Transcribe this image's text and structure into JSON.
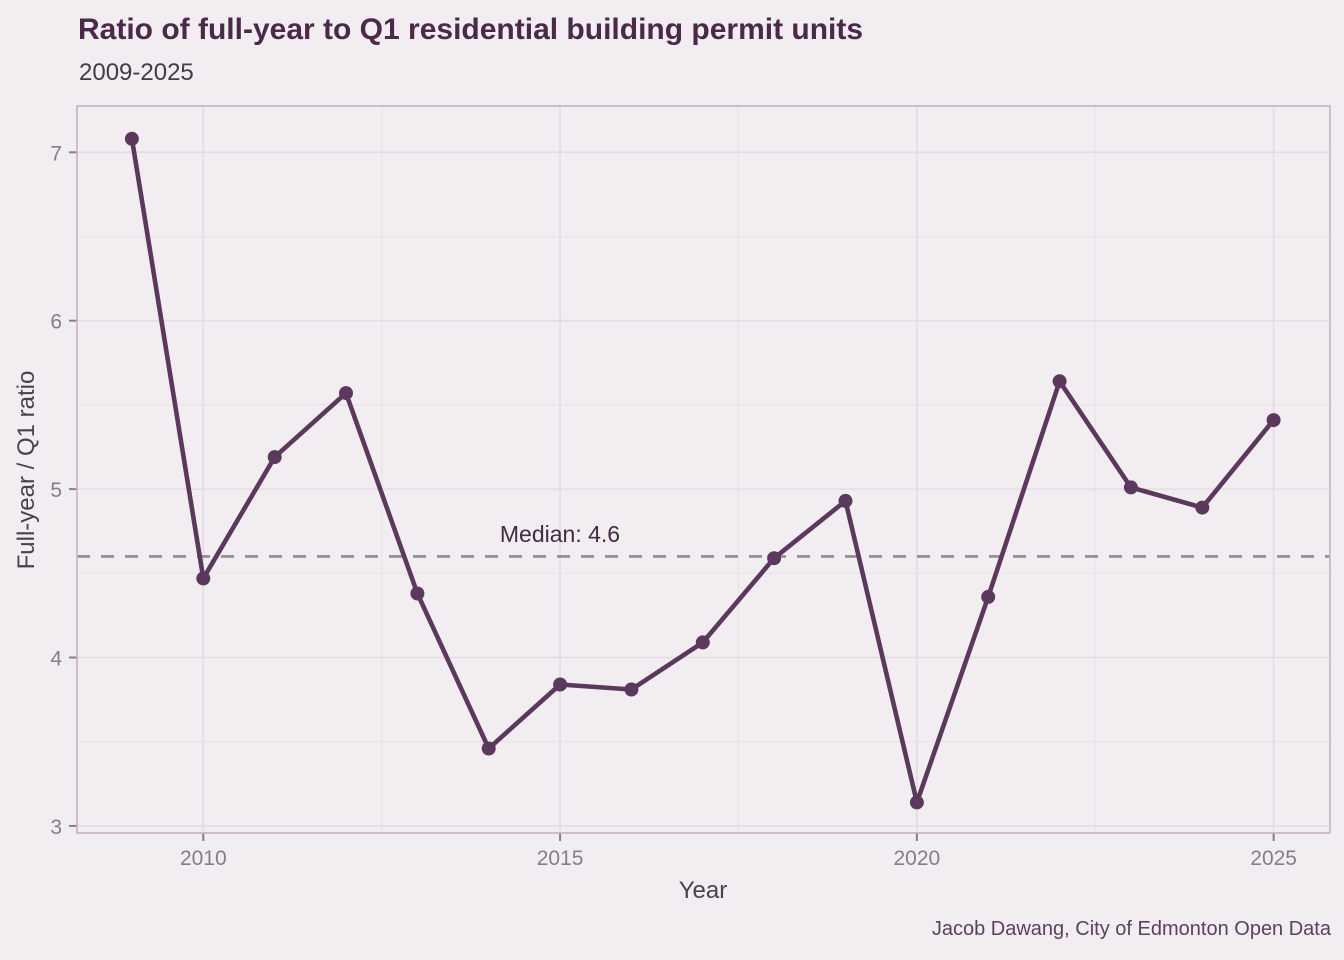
{
  "chart_data": {
    "type": "line",
    "title": "Ratio of full-year to Q1 residential building permit units",
    "subtitle": "2009-2025",
    "xlabel": "Year",
    "ylabel": "Full-year / Q1 ratio",
    "caption": "Jacob Dawang, City of Edmonton Open Data",
    "x": [
      2009,
      2010,
      2011,
      2012,
      2013,
      2014,
      2015,
      2016,
      2017,
      2018,
      2019,
      2020,
      2021,
      2022,
      2023,
      2024,
      2025
    ],
    "values": [
      7.08,
      4.47,
      5.19,
      5.57,
      4.38,
      3.46,
      3.84,
      3.81,
      4.09,
      4.59,
      4.93,
      3.14,
      4.36,
      5.64,
      5.01,
      4.89,
      5.41
    ],
    "median": 4.6,
    "median_label": "Median: 4.6",
    "x_ticks": [
      2010,
      2015,
      2020,
      2025
    ],
    "y_ticks": [
      3,
      4,
      5,
      6,
      7
    ],
    "x_minor_ticks": [
      2012.5,
      2017.5,
      2022.5
    ],
    "y_minor_ticks": [
      3.5,
      4.5,
      5.5,
      6.5
    ],
    "xlim": [
      2008.23,
      2025.79
    ],
    "ylim": [
      2.958,
      7.275
    ],
    "grid": "major+minor",
    "legend": "none",
    "colors": {
      "background": "#f2edf0",
      "line": "#5b395d",
      "point": "#5b395d",
      "median_line": "#8f8a8f",
      "grid_major": "#e4dce2",
      "grid_minor": "#ebe4e9",
      "panel_border": "#c9afc7",
      "tick": "#8a7d8a",
      "tick_label": "#8a7b8c"
    }
  }
}
